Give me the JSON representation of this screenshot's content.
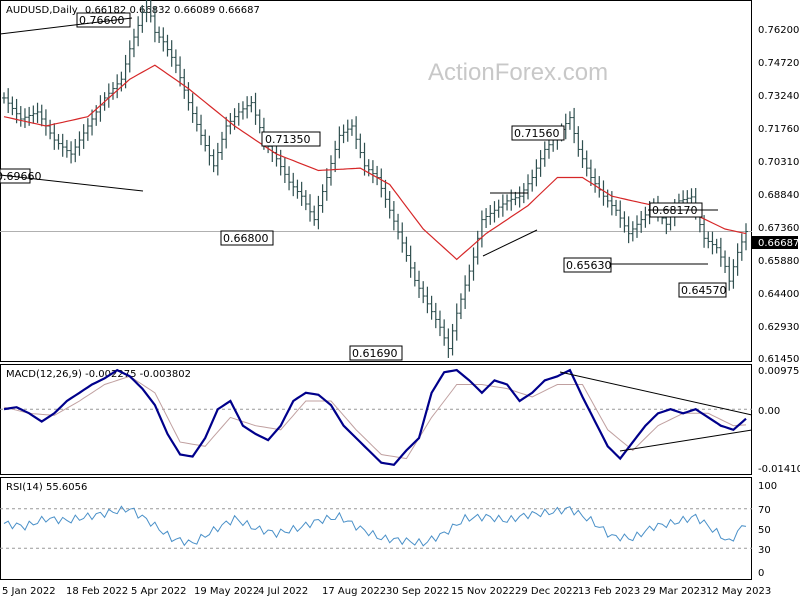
{
  "header": {
    "symbol": "AUDUSD,Daily",
    "ohlc": "0.66182 0.66832 0.66089 0.66687"
  },
  "watermark": "ActionForex.com",
  "colors": {
    "bars": "#2f4f4f",
    "sma": "#d62728",
    "macd": "#00008b",
    "signal": "#c0a0a0",
    "rsi": "#4a90c8",
    "trendline": "#000000"
  },
  "chart_data": [
    {
      "type": "line",
      "title": "AUDUSD,Daily",
      "ylim": [
        0.612,
        0.765
      ],
      "y_ticks": [
        "0.76200",
        "0.74720",
        "0.73240",
        "0.71760",
        "0.70310",
        "0.68840",
        "0.67360",
        "0.65880",
        "0.64400",
        "0.62930",
        "0.61450"
      ],
      "current_price": "0.66687",
      "x_ticks": [
        "5 Jan 2022",
        "18 Feb 2022",
        "5 Apr 2022",
        "19 May 2022",
        "4 Jul 2022",
        "17 Aug 2022",
        "30 Sep 2022",
        "15 Nov 2022",
        "29 Dec 2022",
        "13 Feb 2023",
        "29 Mar 2023",
        "12 May 2023"
      ],
      "annotations": [
        "0.76600",
        "0.69660",
        "0.71350",
        "0.66800",
        "0.61690",
        "0.71560",
        "0.68170",
        "0.65630",
        "0.64570"
      ],
      "series": [
        {
          "label": "price",
          "points": [
            [
              0,
              0.724
            ],
            [
              4,
              0.715
            ],
            [
              8,
              0.718
            ],
            [
              12,
              0.706
            ],
            [
              16,
              0.7
            ],
            [
              20,
              0.712
            ],
            [
              24,
              0.724
            ],
            [
              28,
              0.732
            ],
            [
              30,
              0.745
            ],
            [
              32,
              0.755
            ],
            [
              34,
              0.766
            ],
            [
              36,
              0.752
            ],
            [
              38,
              0.748
            ],
            [
              41,
              0.738
            ],
            [
              44,
              0.722
            ],
            [
              47,
              0.708
            ],
            [
              50,
              0.695
            ],
            [
              53,
              0.712
            ],
            [
              56,
              0.718
            ],
            [
              59,
              0.722
            ],
            [
              62,
              0.706
            ],
            [
              65,
              0.698
            ],
            [
              68,
              0.688
            ],
            [
              71,
              0.682
            ],
            [
              74,
              0.672
            ],
            [
              77,
              0.69
            ],
            [
              80,
              0.708
            ],
            [
              83,
              0.712
            ],
            [
              86,
              0.695
            ],
            [
              89,
              0.69
            ],
            [
              92,
              0.676
            ],
            [
              95,
              0.662
            ],
            [
              98,
              0.646
            ],
            [
              101,
              0.636
            ],
            [
              104,
              0.626
            ],
            [
              106,
              0.6169
            ],
            [
              108,
              0.632
            ],
            [
              110,
              0.644
            ],
            [
              112,
              0.656
            ],
            [
              114,
              0.672
            ],
            [
              117,
              0.676
            ],
            [
              120,
              0.68
            ],
            [
              123,
              0.682
            ],
            [
              126,
              0.69
            ],
            [
              129,
              0.702
            ],
            [
              132,
              0.708
            ],
            [
              135,
              0.7156
            ],
            [
              137,
              0.702
            ],
            [
              140,
              0.69
            ],
            [
              143,
              0.682
            ],
            [
              146,
              0.676
            ],
            [
              149,
              0.666
            ],
            [
              152,
              0.672
            ],
            [
              155,
              0.678
            ],
            [
              158,
              0.67
            ],
            [
              161,
              0.68
            ],
            [
              164,
              0.6817
            ],
            [
              167,
              0.664
            ],
            [
              170,
              0.66
            ],
            [
              172,
              0.652
            ],
            [
              173,
              0.6457
            ],
            [
              175,
              0.658
            ],
            [
              177,
              0.6669
            ]
          ]
        },
        {
          "label": "SMA",
          "points": [
            [
              0,
              0.716
            ],
            [
              10,
              0.712
            ],
            [
              20,
              0.716
            ],
            [
              30,
              0.732
            ],
            [
              36,
              0.738
            ],
            [
              44,
              0.728
            ],
            [
              55,
              0.712
            ],
            [
              65,
              0.7
            ],
            [
              75,
              0.693
            ],
            [
              85,
              0.694
            ],
            [
              92,
              0.687
            ],
            [
              100,
              0.668
            ],
            [
              108,
              0.655
            ],
            [
              115,
              0.666
            ],
            [
              125,
              0.678
            ],
            [
              132,
              0.69
            ],
            [
              138,
              0.69
            ],
            [
              145,
              0.682
            ],
            [
              155,
              0.678
            ],
            [
              165,
              0.674
            ],
            [
              172,
              0.668
            ],
            [
              177,
              0.666
            ]
          ]
        }
      ]
    },
    {
      "type": "line",
      "title": "MACD(12,26,9) -0.002275 -0.003802",
      "ylim": [
        -0.0155,
        0.0105
      ],
      "y_ticks": [
        "0.009751",
        "0.00",
        "-0.014107"
      ],
      "series": [
        {
          "label": "MACD",
          "points": [
            [
              0,
              0.0
            ],
            [
              3,
              0.0005
            ],
            [
              6,
              -0.001
            ],
            [
              9,
              -0.003
            ],
            [
              12,
              -0.001
            ],
            [
              15,
              0.002
            ],
            [
              18,
              0.004
            ],
            [
              21,
              0.006
            ],
            [
              24,
              0.0075
            ],
            [
              27,
              0.0095
            ],
            [
              30,
              0.008
            ],
            [
              33,
              0.005
            ],
            [
              36,
              0.001
            ],
            [
              39,
              -0.006
            ],
            [
              42,
              -0.011
            ],
            [
              45,
              -0.0115
            ],
            [
              48,
              -0.007
            ],
            [
              51,
              0.0
            ],
            [
              54,
              0.002
            ],
            [
              57,
              -0.004
            ],
            [
              60,
              -0.006
            ],
            [
              63,
              -0.0075
            ],
            [
              66,
              -0.004
            ],
            [
              69,
              0.002
            ],
            [
              72,
              0.004
            ],
            [
              75,
              0.0035
            ],
            [
              78,
              0.001
            ],
            [
              81,
              -0.004
            ],
            [
              84,
              -0.007
            ],
            [
              87,
              -0.01
            ],
            [
              90,
              -0.013
            ],
            [
              93,
              -0.0135
            ],
            [
              96,
              -0.01
            ],
            [
              99,
              -0.007
            ],
            [
              102,
              0.004
            ],
            [
              105,
              0.009
            ],
            [
              108,
              0.0095
            ],
            [
              111,
              0.007
            ],
            [
              114,
              0.004
            ],
            [
              117,
              0.007
            ],
            [
              120,
              0.006
            ],
            [
              123,
              0.002
            ],
            [
              126,
              0.004
            ],
            [
              129,
              0.007
            ],
            [
              132,
              0.008
            ],
            [
              135,
              0.0095
            ],
            [
              138,
              0.003
            ],
            [
              141,
              -0.003
            ],
            [
              144,
              -0.009
            ],
            [
              147,
              -0.012
            ],
            [
              150,
              -0.008
            ],
            [
              153,
              -0.004
            ],
            [
              156,
              -0.001
            ],
            [
              159,
              0.0
            ],
            [
              162,
              -0.001
            ],
            [
              165,
              0.0
            ],
            [
              168,
              -0.002
            ],
            [
              171,
              -0.004
            ],
            [
              174,
              -0.005
            ],
            [
              177,
              -0.0023
            ]
          ]
        },
        {
          "label": "Signal",
          "points": [
            [
              0,
              0.0005
            ],
            [
              6,
              -0.001
            ],
            [
              12,
              -0.0015
            ],
            [
              18,
              0.002
            ],
            [
              24,
              0.006
            ],
            [
              30,
              0.008
            ],
            [
              36,
              0.004
            ],
            [
              42,
              -0.008
            ],
            [
              48,
              -0.009
            ],
            [
              54,
              -0.002
            ],
            [
              60,
              -0.004
            ],
            [
              66,
              -0.005
            ],
            [
              72,
              0.002
            ],
            [
              78,
              0.002
            ],
            [
              84,
              -0.005
            ],
            [
              90,
              -0.011
            ],
            [
              96,
              -0.012
            ],
            [
              102,
              -0.002
            ],
            [
              108,
              0.006
            ],
            [
              114,
              0.006
            ],
            [
              120,
              0.005
            ],
            [
              126,
              0.003
            ],
            [
              132,
              0.006
            ],
            [
              138,
              0.006
            ],
            [
              144,
              -0.005
            ],
            [
              150,
              -0.01
            ],
            [
              156,
              -0.004
            ],
            [
              162,
              -0.001
            ],
            [
              168,
              -0.001
            ],
            [
              174,
              -0.004
            ],
            [
              177,
              -0.0038
            ]
          ]
        }
      ]
    },
    {
      "type": "line",
      "title": "RSI(14) 55.6056",
      "ylim": [
        0,
        100
      ],
      "y_ticks": [
        "100",
        "70",
        "50",
        "30",
        "0"
      ],
      "series": [
        {
          "label": "RSI",
          "points": [
            [
              0,
              55
            ],
            [
              5,
              52
            ],
            [
              10,
              60
            ],
            [
              15,
              58
            ],
            [
              20,
              62
            ],
            [
              25,
              66
            ],
            [
              30,
              70
            ],
            [
              35,
              56
            ],
            [
              40,
              40
            ],
            [
              45,
              35
            ],
            [
              50,
              48
            ],
            [
              55,
              60
            ],
            [
              60,
              50
            ],
            [
              65,
              45
            ],
            [
              70,
              50
            ],
            [
              75,
              58
            ],
            [
              80,
              62
            ],
            [
              85,
              50
            ],
            [
              90,
              40
            ],
            [
              95,
              38
            ],
            [
              100,
              35
            ],
            [
              105,
              45
            ],
            [
              110,
              60
            ],
            [
              115,
              62
            ],
            [
              120,
              58
            ],
            [
              125,
              64
            ],
            [
              130,
              66
            ],
            [
              135,
              70
            ],
            [
              140,
              58
            ],
            [
              145,
              42
            ],
            [
              150,
              40
            ],
            [
              155,
              52
            ],
            [
              160,
              56
            ],
            [
              165,
              62
            ],
            [
              170,
              46
            ],
            [
              173,
              36
            ],
            [
              177,
              56
            ]
          ]
        }
      ]
    }
  ]
}
